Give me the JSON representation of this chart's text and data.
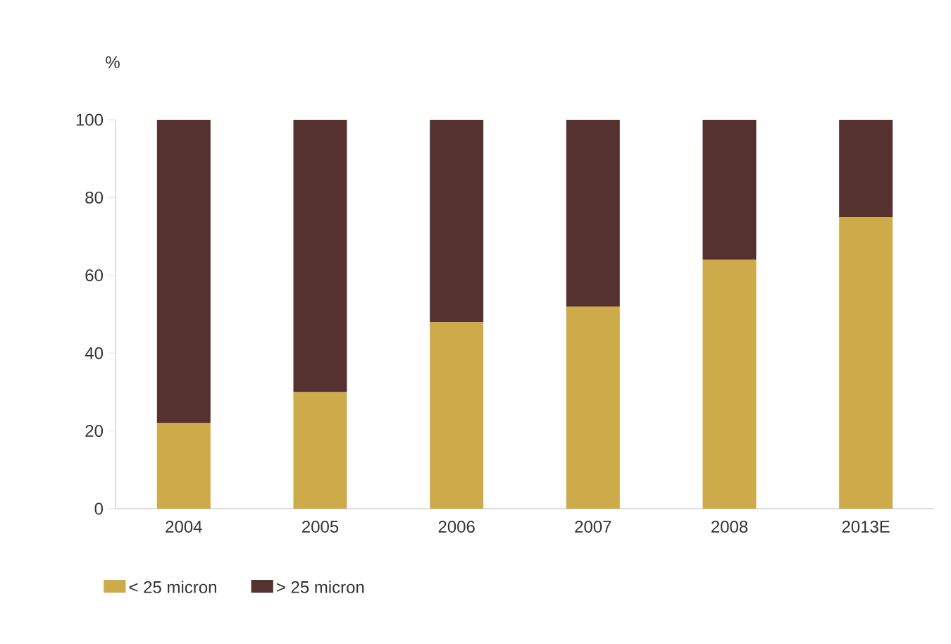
{
  "chart_data": {
    "type": "bar",
    "stacked": true,
    "ylabel": "%",
    "categories": [
      "2004",
      "2005",
      "2006",
      "2007",
      "2008",
      "2013E"
    ],
    "series": [
      {
        "name": "< 25 micron",
        "color": "#cdab4b",
        "values": [
          22,
          30,
          48,
          52,
          64,
          75
        ]
      },
      {
        "name": "> 25 micron",
        "color": "#553230",
        "values": [
          78,
          70,
          52,
          48,
          36,
          25
        ]
      }
    ],
    "ylim": [
      0,
      100
    ],
    "yticks": [
      0,
      20,
      40,
      60,
      80,
      100
    ],
    "grid": false,
    "legend": "bottom left"
  }
}
